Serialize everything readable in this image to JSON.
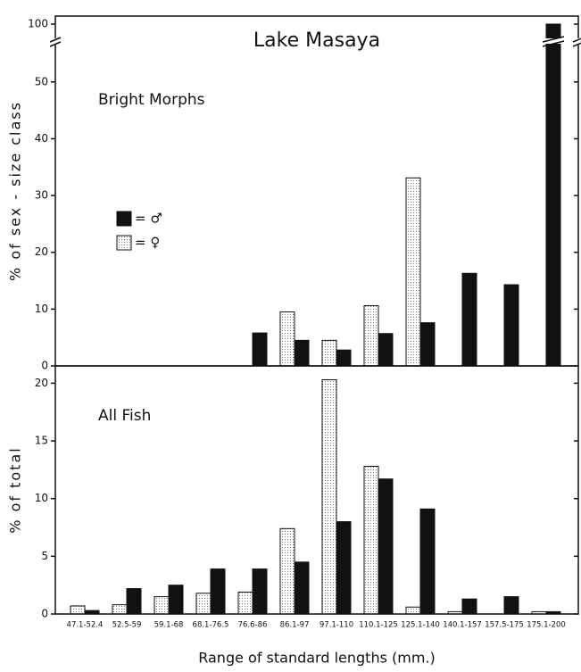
{
  "chart_data": [
    {
      "type": "bar",
      "title": "Lake Masaya",
      "panel_label": "Bright Morphs",
      "ylabel": "% of sex - size class",
      "ylim": [
        0,
        100
      ],
      "y_break": [
        55,
        98
      ],
      "yticks": [
        0,
        10,
        20,
        30,
        40,
        50,
        100
      ],
      "legend": "center-left",
      "series": [
        {
          "name": "= ♀",
          "color": "#e6e6e6",
          "values": [
            null,
            null,
            null,
            null,
            null,
            9.5,
            4.5,
            10.6,
            33.1,
            null,
            null,
            null
          ]
        },
        {
          "name": "= ♂",
          "color": "#111111",
          "values": [
            null,
            null,
            null,
            null,
            5.8,
            4.5,
            2.8,
            5.7,
            7.6,
            16.3,
            14.3,
            100
          ]
        }
      ]
    },
    {
      "type": "bar",
      "panel_label": "All Fish",
      "ylabel": "% of total",
      "xlabel": "Range of standard lengths (mm.)",
      "categories": [
        "47.1-52.4",
        "52.5-59",
        "59.1-68",
        "68.1-76.5",
        "76.6-86",
        "86.1-97",
        "97.1-110",
        "110.1-125",
        "125.1-140",
        "140.1-157",
        "157.5-175",
        "175.1-200"
      ],
      "ylim": [
        0,
        21.5
      ],
      "yticks": [
        0,
        5,
        10,
        15,
        20
      ],
      "series": [
        {
          "name": "= ♀",
          "color": "#e6e6e6",
          "values": [
            0.7,
            0.8,
            1.5,
            1.8,
            1.9,
            7.4,
            20.3,
            12.8,
            0.6,
            0.2,
            null,
            0.2
          ]
        },
        {
          "name": "= ♂",
          "color": "#111111",
          "values": [
            0.3,
            2.2,
            2.5,
            3.9,
            3.9,
            4.5,
            8.0,
            11.7,
            9.1,
            1.3,
            1.5,
            0.2
          ]
        }
      ]
    }
  ]
}
